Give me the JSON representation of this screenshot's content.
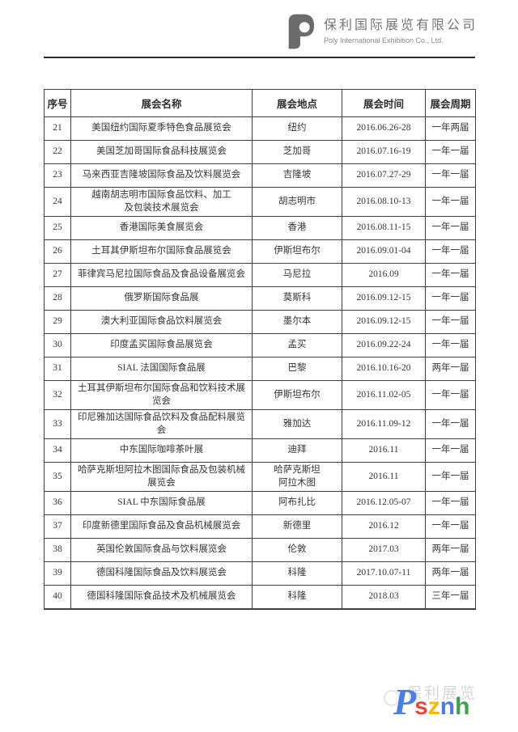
{
  "header": {
    "company_name_cn": "保利国际展览有限公司",
    "company_name_en": "Poly International Exhibition Co., Ltd."
  },
  "table": {
    "columns": [
      "序号",
      "展会名称",
      "展会地点",
      "展会时间",
      "展会周期"
    ],
    "rows": [
      {
        "no": "21",
        "name": "美国纽约国际夏季特色食品展览会",
        "location": "纽约",
        "time": "2016.06.26-28",
        "cycle": "一年两届"
      },
      {
        "no": "22",
        "name": "美国芝加哥国际食品科技展览会",
        "location": "芝加哥",
        "time": "2016.07.16-19",
        "cycle": "一年一届"
      },
      {
        "no": "23",
        "name": "马来西亚吉隆坡国际食品及饮料展览会",
        "location": "吉隆坡",
        "time": "2016.07.27-29",
        "cycle": "一年一届"
      },
      {
        "no": "24",
        "name": "越南胡志明市国际食品饮料、加工\n及包装技术展览会",
        "location": "胡志明市",
        "time": "2016.08.10-13",
        "cycle": "一年一届"
      },
      {
        "no": "25",
        "name": "香港国际美食展览会",
        "location": "香港",
        "time": "2016.08.11-15",
        "cycle": "一年一届"
      },
      {
        "no": "26",
        "name": "土耳其伊斯坦布尔国际食品展览会",
        "location": "伊斯坦布尔",
        "time": "2016.09.01-04",
        "cycle": "一年一届"
      },
      {
        "no": "27",
        "name": "菲律宾马尼拉国际食品及食品设备展览会",
        "location": "马尼拉",
        "time": "2016.09",
        "cycle": "一年一届"
      },
      {
        "no": "28",
        "name": "俄罗斯国际食品展",
        "location": "莫斯科",
        "time": "2016.09.12-15",
        "cycle": "一年一届"
      },
      {
        "no": "29",
        "name": "澳大利亚国际食品饮料展览会",
        "location": "墨尔本",
        "time": "2016.09.12-15",
        "cycle": "一年一届"
      },
      {
        "no": "30",
        "name": "印度孟买国际食品展览会",
        "location": "孟买",
        "time": "2016.09.22-24",
        "cycle": "一年一届"
      },
      {
        "no": "31",
        "name": "SIAL 法国国际食品展",
        "location": "巴黎",
        "time": "2016.10.16-20",
        "cycle": "两年一届"
      },
      {
        "no": "32",
        "name": "土耳其伊斯坦布尔国际食品和饮料技术展\n览会",
        "location": "伊斯坦布尔",
        "time": "2016.11.02-05",
        "cycle": "一年一届"
      },
      {
        "no": "33",
        "name": "印尼雅加达国际食品饮料及食品配料展览\n会",
        "location": "雅加达",
        "time": "2016.11.09-12",
        "cycle": "一年一届"
      },
      {
        "no": "34",
        "name": "中东国际咖啡茶叶展",
        "location": "迪拜",
        "time": "2016.11",
        "cycle": "一年一届"
      },
      {
        "no": "35",
        "name": "哈萨克斯坦阿拉木图国际食品及包装机械\n展览会",
        "location": "哈萨克斯坦\n阿拉木图",
        "time": "2016.11",
        "cycle": "一年一届"
      },
      {
        "no": "36",
        "name": "SIAL 中东国际食品展",
        "location": "阿布扎比",
        "time": "2016.12.05-07",
        "cycle": "一年一届"
      },
      {
        "no": "37",
        "name": "印度新德里国际食品及食品机械展览会",
        "location": "新德里",
        "time": "2016.12",
        "cycle": "一年一届"
      },
      {
        "no": "38",
        "name": "英国伦敦国际食品与饮料展览会",
        "location": "伦敦",
        "time": "2017.03",
        "cycle": "两年一届"
      },
      {
        "no": "39",
        "name": "德国科隆国际食品及饮料展览会",
        "location": "科隆",
        "time": "2017.10.07-11",
        "cycle": "两年一届"
      },
      {
        "no": "40",
        "name": "德国科隆国际食品技术及机械展览会",
        "location": "科隆",
        "time": "2018.03",
        "cycle": "三年一届"
      }
    ]
  },
  "watermark": {
    "shadow_text": "保利展览",
    "letters": [
      {
        "char": "P",
        "color": "#4a7ee2"
      },
      {
        "char": "s",
        "color": "#e4483c"
      },
      {
        "char": "z",
        "color": "#f7b70a"
      },
      {
        "char": "n",
        "color": "#4a7ee2"
      },
      {
        "char": "h",
        "color": "#3da04a"
      }
    ]
  },
  "colors": {
    "logo_gray": "#6b6b6b",
    "border": "#3d3d3d",
    "text": "#363636"
  }
}
